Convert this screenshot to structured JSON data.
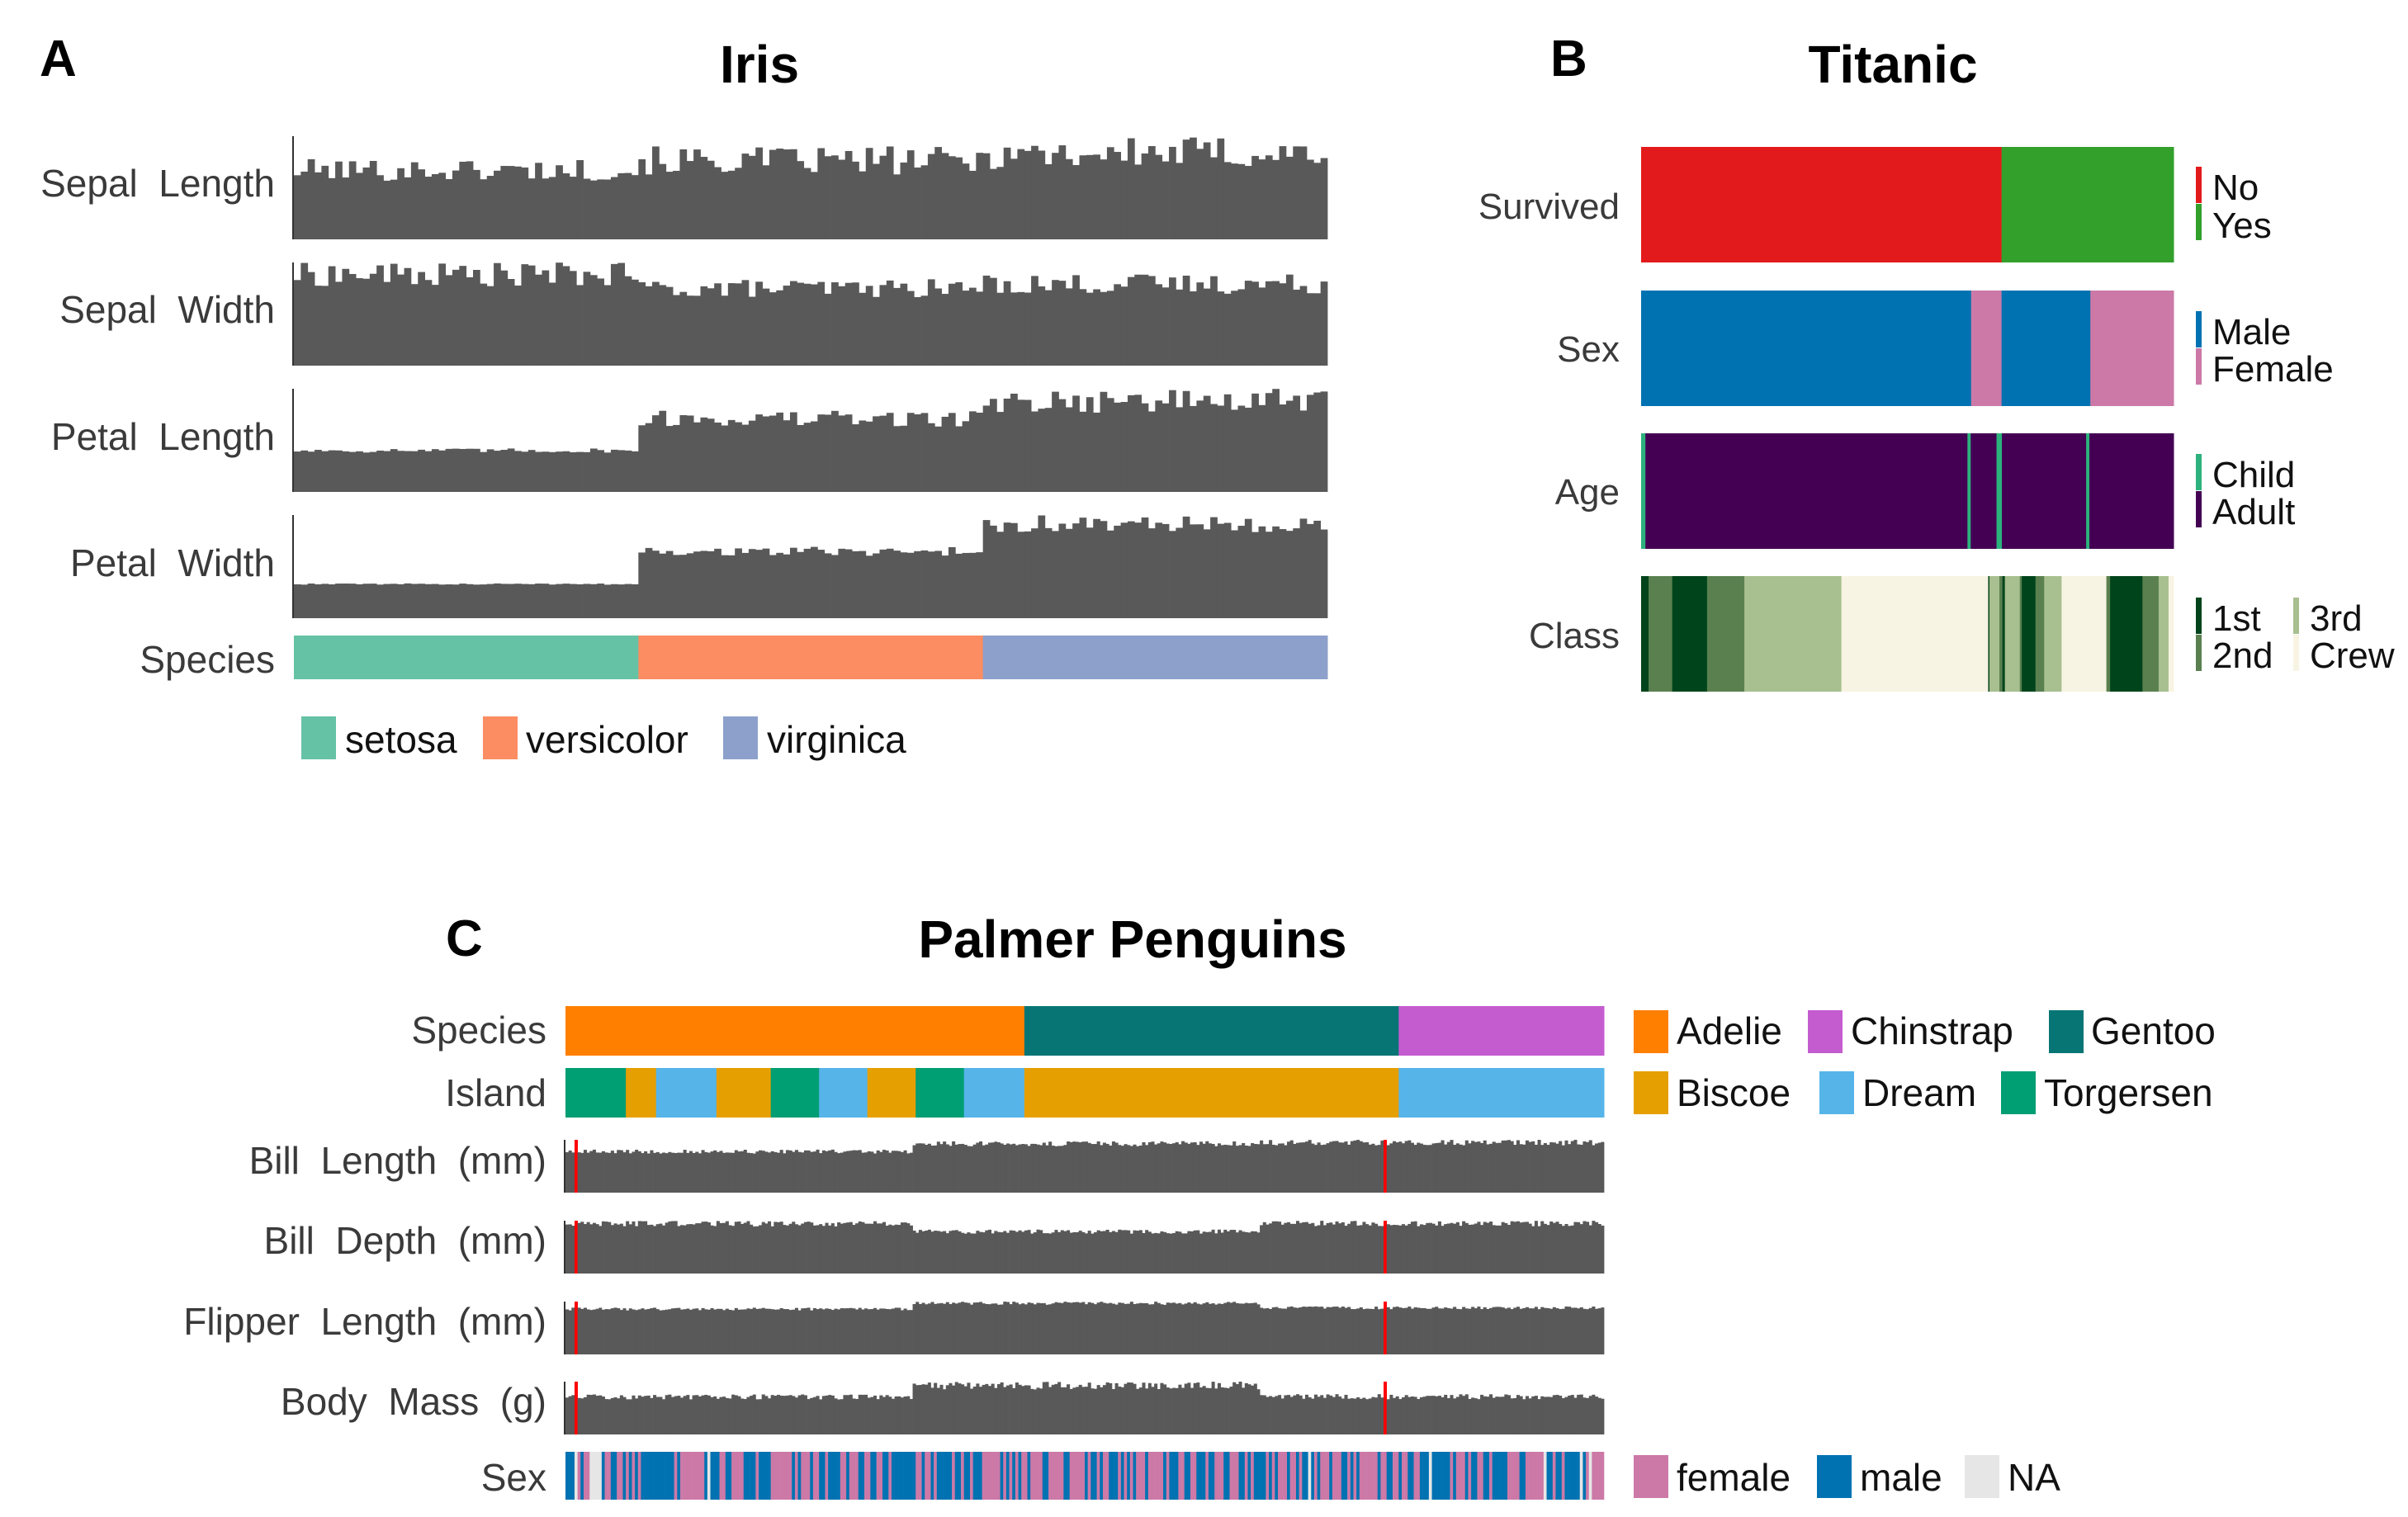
{
  "colors": {
    "bar": "#595959",
    "missing": "#ff0000",
    "setosa": "#66c2a5",
    "versicolor": "#fc8d62",
    "virginica": "#8da0cb",
    "No": "#e31a1c",
    "Yes": "#33a02c",
    "Male": "#0072b2",
    "Female": "#cc79a7",
    "Child": "#2db27d",
    "Adult": "#440154",
    "1st": "#00441b",
    "2nd": "#5a8050",
    "3rd": "#a8bf8f",
    "Crew": "#f7f4e3",
    "Adelie": "#ff7f00",
    "Chinstrap": "#c45ccf",
    "Gentoo": "#087575",
    "Biscoe": "#e69f00",
    "Dream": "#56b4e9",
    "Torgersen": "#009e73",
    "female": "#cc79a7",
    "male": "#0072b2",
    "NA": "#e6e6e6"
  },
  "chart_data": [
    {
      "type": "bar",
      "panel": "A",
      "title": "Iris",
      "n_obs": 150,
      "rows": [
        {
          "label": "Sepal  Length",
          "kind": "bars",
          "group_levels": [
            5.0,
            5.9,
            6.6
          ],
          "noise": 0.45
        },
        {
          "label": "Sepal  Width",
          "kind": "bars",
          "group_levels": [
            3.4,
            2.8,
            3.0
          ],
          "noise": 0.3
        },
        {
          "label": "Petal  Length",
          "kind": "bars",
          "group_levels": [
            1.5,
            4.3,
            5.6
          ],
          "noise": 0.3
        },
        {
          "label": "Petal  Width",
          "kind": "bars",
          "group_levels": [
            0.25,
            1.3,
            2.0
          ],
          "noise": 0.2
        },
        {
          "label": "Species",
          "kind": "categorical",
          "segments": [
            [
              "setosa",
              50
            ],
            [
              "versicolor",
              50
            ],
            [
              "virginica",
              50
            ]
          ]
        }
      ],
      "legend": [
        "setosa",
        "versicolor",
        "virginica"
      ]
    },
    {
      "type": "bar",
      "panel": "B",
      "title": "Titanic",
      "rows": [
        {
          "label": "Survived",
          "segments": [
            [
              "No",
              1490
            ],
            [
              "Yes",
              711
            ]
          ],
          "legend": [
            [
              "No",
              "Yes"
            ]
          ]
        },
        {
          "label": "Sex",
          "segments": [
            [
              "Male",
              1364
            ],
            [
              "Female",
              126
            ],
            [
              "Male",
              367
            ],
            [
              "Female",
              344
            ]
          ],
          "legend": [
            [
              "Male",
              "Female"
            ]
          ]
        },
        {
          "label": "Age",
          "segments": [
            [
              "Child",
              16
            ],
            [
              "Adult",
              1197
            ],
            [
              "Child",
              12
            ],
            [
              "Adult",
              96
            ],
            [
              "Child",
              20
            ],
            [
              "Adult",
              313
            ],
            [
              "Child",
              12
            ],
            [
              "Adult",
              313
            ]
          ],
          "legend": [
            [
              "Child",
              "Adult"
            ]
          ]
        },
        {
          "label": "Class",
          "segments": [
            [
              "1st",
              30
            ],
            [
              "2nd",
              95
            ],
            [
              "1st",
              140
            ],
            [
              "2nd",
              150
            ],
            [
              "3rd",
              390
            ],
            [
              "Crew",
              590
            ],
            [
              "1st",
              5
            ],
            [
              "3rd",
              40
            ],
            [
              "2nd",
              12
            ],
            [
              "1st",
              10
            ],
            [
              "3rd",
              60
            ],
            [
              "2nd",
              8
            ],
            [
              "1st",
              55
            ],
            [
              "2nd",
              35
            ],
            [
              "3rd",
              70
            ],
            [
              "Crew",
              180
            ],
            [
              "2nd",
              15
            ],
            [
              "1st",
              130
            ],
            [
              "2nd",
              65
            ],
            [
              "3rd",
              40
            ],
            [
              "Crew",
              20
            ]
          ],
          "legend": [
            [
              "1st",
              "2nd"
            ],
            [
              "3rd",
              "Crew"
            ]
          ]
        }
      ]
    },
    {
      "type": "bar",
      "panel": "C",
      "title": "Palmer Penguins",
      "n_obs": 344,
      "rows": [
        {
          "label": "Species",
          "kind": "categorical",
          "segments": [
            [
              "Adelie",
              152
            ],
            [
              "Gentoo",
              124
            ],
            [
              "Chinstrap",
              68
            ]
          ]
        },
        {
          "label": "Island",
          "kind": "categorical",
          "segments": [
            [
              "Torgersen",
              20
            ],
            [
              "Biscoe",
              10
            ],
            [
              "Dream",
              20
            ],
            [
              "Biscoe",
              18
            ],
            [
              "Torgersen",
              16
            ],
            [
              "Dream",
              16
            ],
            [
              "Biscoe",
              16
            ],
            [
              "Torgersen",
              16
            ],
            [
              "Dream",
              20
            ],
            [
              "Biscoe",
              124
            ],
            [
              "Dream",
              68
            ]
          ]
        },
        {
          "label": "Bill  Length  (mm)",
          "kind": "bars",
          "group_levels": [
            38.8,
            47.5,
            48.8
          ],
          "noise": 0.12,
          "missing_at": [
            3,
            271
          ]
        },
        {
          "label": "Bill  Depth  (mm)",
          "kind": "bars",
          "group_levels": [
            18.3,
            15.0,
            18.4
          ],
          "noise": 0.12,
          "missing_at": [
            3,
            271
          ]
        },
        {
          "label": "Flipper  Length  (mm)",
          "kind": "bars",
          "group_levels": [
            190,
            217,
            196
          ],
          "noise": 0.07,
          "missing_at": [
            3,
            271
          ]
        },
        {
          "label": "Body  Mass  (g)",
          "kind": "bars",
          "group_levels": [
            3700,
            5076,
            3733
          ],
          "noise": 0.18,
          "missing_at": [
            3,
            271
          ]
        },
        {
          "label": "Sex",
          "kind": "sex"
        }
      ],
      "legend": [
        [
          "Adelie",
          "Chinstrap",
          "Gentoo"
        ],
        [
          "Biscoe",
          "Dream",
          "Torgersen"
        ],
        [
          "female",
          "male",
          "NA"
        ]
      ]
    }
  ]
}
